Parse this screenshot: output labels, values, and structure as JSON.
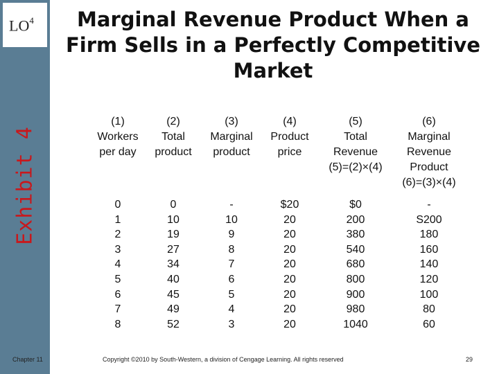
{
  "sidebar": {
    "lo_label": "LO",
    "lo_number": "4",
    "exhibit_label": "Exhibit 4"
  },
  "title": "Marginal Revenue Product When a Firm Sells in a Perfectly Competitive Market",
  "table": {
    "headers": [
      [
        "(1)",
        "Workers",
        "per day"
      ],
      [
        "(2)",
        "Total",
        "product"
      ],
      [
        "(3)",
        "Marginal",
        "product"
      ],
      [
        "(4)",
        "Product",
        "price"
      ],
      [
        "(5)",
        "Total",
        "Revenue",
        "(5)=(2)×(4)"
      ],
      [
        "(6)",
        "Marginal",
        "Revenue",
        "Product",
        "(6)=(3)×(4)"
      ]
    ],
    "rows": [
      [
        "0",
        "0",
        "-",
        "$20",
        "$0",
        "-"
      ],
      [
        "1",
        "10",
        "10",
        "20",
        "200",
        "S200"
      ],
      [
        "2",
        "19",
        "9",
        "20",
        "380",
        "180"
      ],
      [
        "3",
        "27",
        "8",
        "20",
        "540",
        "160"
      ],
      [
        "4",
        "34",
        "7",
        "20",
        "680",
        "140"
      ],
      [
        "5",
        "40",
        "6",
        "20",
        "800",
        "120"
      ],
      [
        "6",
        "45",
        "5",
        "20",
        "900",
        "100"
      ],
      [
        "7",
        "49",
        "4",
        "20",
        "980",
        "80"
      ],
      [
        "8",
        "52",
        "3",
        "20",
        "1040",
        "60"
      ]
    ]
  },
  "footer": {
    "chapter": "Chapter 11",
    "copyright": "Copyright ©2010 by South-Western, a division of Cengage Learning. All rights reserved",
    "page": "29"
  },
  "colors": {
    "sidebar": "#5a7d94",
    "exhibit": "#c8181c"
  }
}
